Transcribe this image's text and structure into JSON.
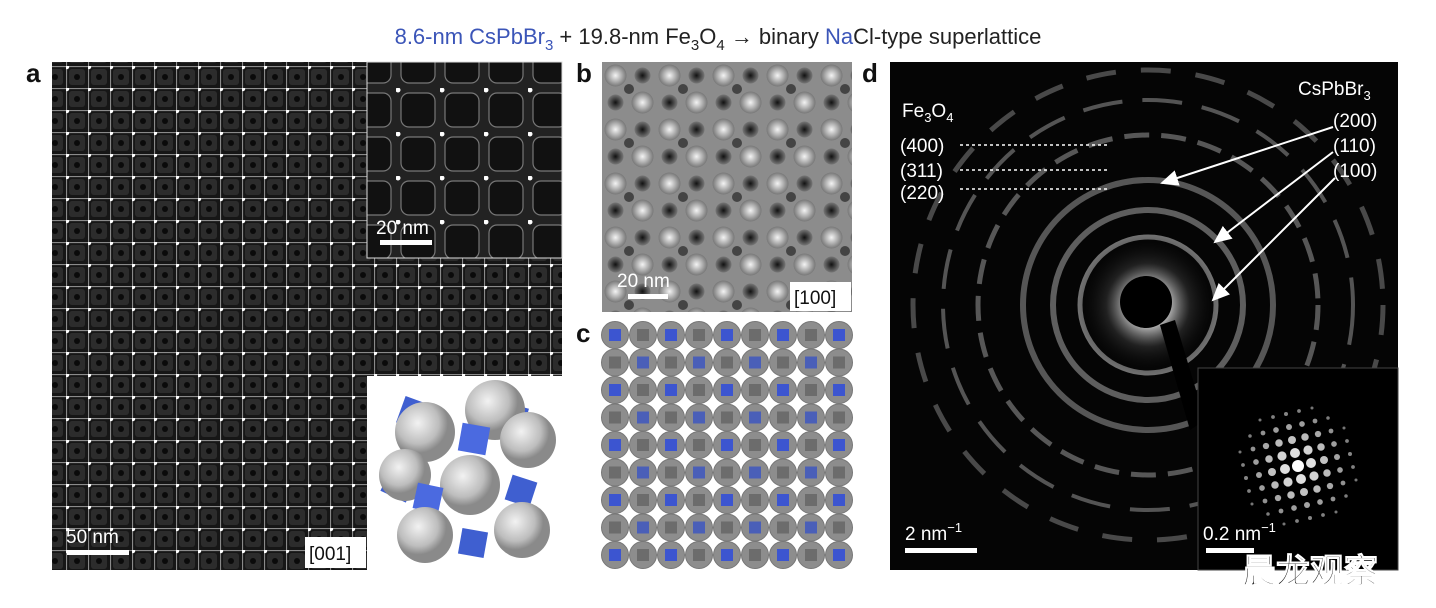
{
  "title": {
    "part1": "8.6-nm CsPbBr",
    "sub1": "3",
    "part2": " + 19.8-nm Fe",
    "sub2": "3",
    "part3": "O",
    "sub3": "4",
    "part4": "  →  binary ",
    "part5": "Na",
    "part6": "Cl-type superlattice"
  },
  "panels": {
    "a": {
      "label": "a",
      "scale_bar": "50 nm",
      "zone_axis": "[001]",
      "inset_scale_bar": "20 nm"
    },
    "b": {
      "label": "b",
      "scale_bar": "20 nm",
      "zone_axis": "[100]"
    },
    "c": {
      "label": "c"
    },
    "d": {
      "label": "d",
      "fe3o4": {
        "base": "Fe",
        "sub1": "3",
        "mid": "O",
        "sub2": "4"
      },
      "cspbbr3": {
        "base": "CsPbBr",
        "sub": "3"
      },
      "fe_reflections": [
        "(400)",
        "(311)",
        "(220)"
      ],
      "cs_reflections": [
        "(200)",
        "(110)",
        "(100)"
      ],
      "scale_bar": {
        "base": "2 nm",
        "sup": "−1"
      },
      "inset_scale_bar": {
        "base": "0.2 nm",
        "sup": "−1"
      }
    }
  },
  "watermark": "晨龙观察"
}
